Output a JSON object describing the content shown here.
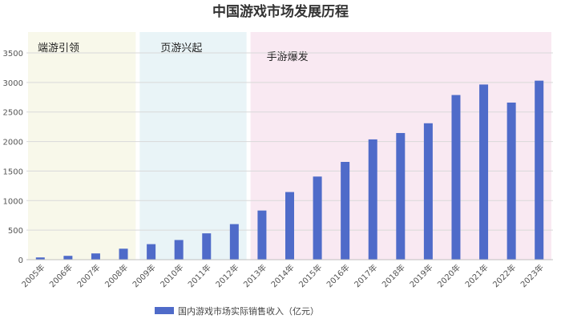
{
  "chart_data": {
    "type": "bar",
    "title": "中国游戏市场发展历程",
    "categories": [
      "2005年",
      "2006年",
      "2007年",
      "2008年",
      "2009年",
      "2010年",
      "2011年",
      "2012年",
      "2013年",
      "2014年",
      "2015年",
      "2016年",
      "2017年",
      "2018年",
      "2019年",
      "2020年",
      "2021年",
      "2022年",
      "2023年"
    ],
    "series": [
      {
        "name": "国内游戏市场实际销售收入（亿元）",
        "values": [
          38,
          65,
          106,
          186,
          263,
          333,
          446,
          602,
          832,
          1145,
          1407,
          1655,
          2036,
          2144,
          2309,
          2787,
          2965,
          2659,
          3030
        ]
      }
    ],
    "yticks": [
      "0",
      "500",
      "1000",
      "1500",
      "2000",
      "2500",
      "3000",
      "3500"
    ],
    "ylim": [
      0,
      3500
    ],
    "phases": [
      {
        "label": "端游引领",
        "from": "2005年",
        "to": "2008年",
        "color": "#f8f8ea"
      },
      {
        "label": "页游兴起",
        "from": "2009年",
        "to": "2012年",
        "color": "#e9f4f7"
      },
      {
        "label": "手游爆发",
        "from": "2013年",
        "to": "2023年",
        "color": "#f9e9f2"
      }
    ],
    "bar_color": "#4f6bc9",
    "grid": true,
    "legend_position": "bottom-center"
  }
}
